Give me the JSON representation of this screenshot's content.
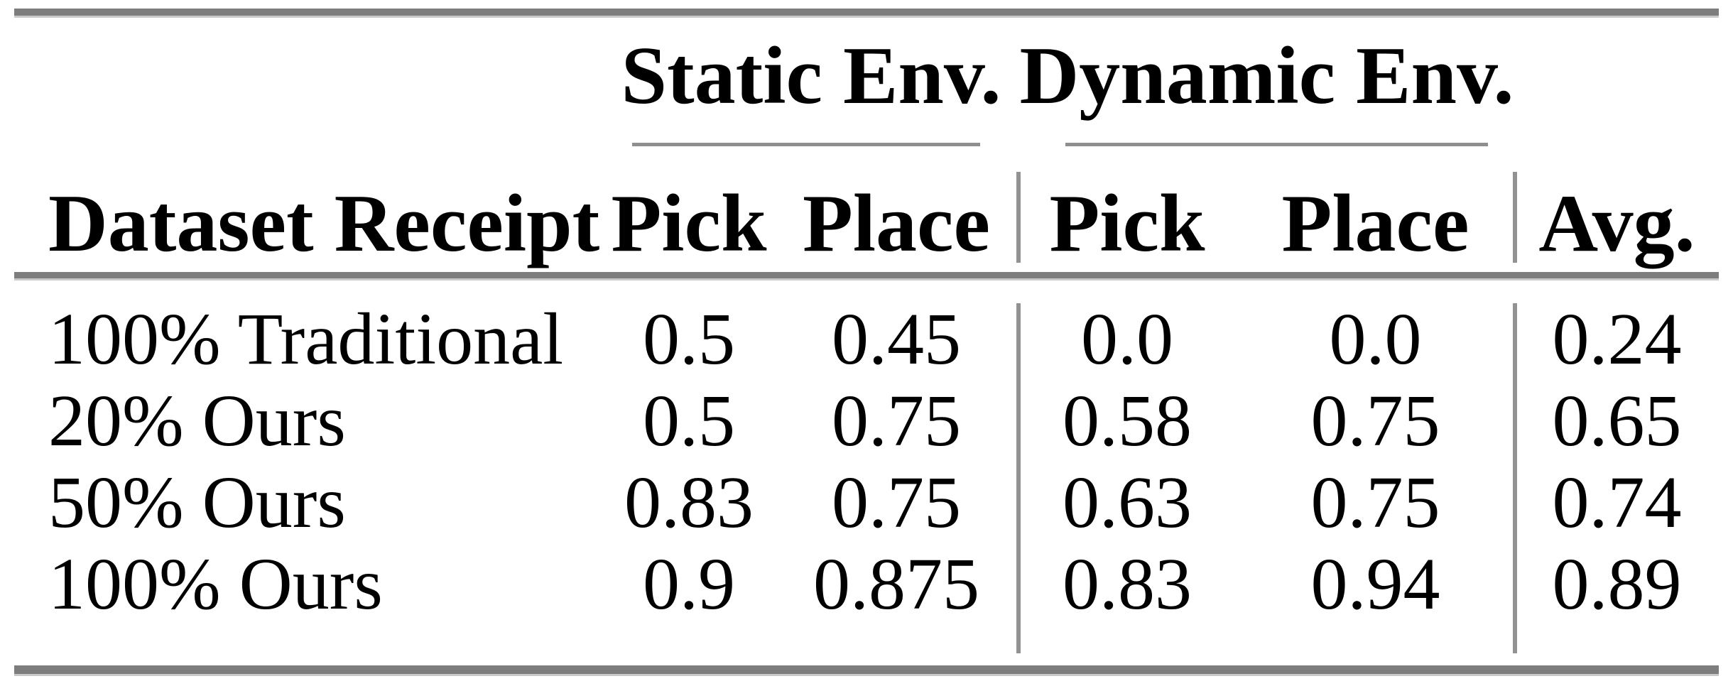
{
  "table": {
    "group_headers": {
      "static": "Static Env.",
      "dynamic": "Dynamic Env."
    },
    "column_headers": {
      "dataset": "Dataset Receipt",
      "static_pick": "Pick",
      "static_place": "Place",
      "dynamic_pick": "Pick",
      "dynamic_place": "Place",
      "avg": "Avg."
    },
    "rows": [
      {
        "dataset": "100% Traditional",
        "static_pick": "0.5",
        "static_place": "0.45",
        "dynamic_pick": "0.0",
        "dynamic_place": "0.0",
        "avg": "0.24"
      },
      {
        "dataset": "20% Ours",
        "static_pick": "0.5",
        "static_place": "0.75",
        "dynamic_pick": "0.58",
        "dynamic_place": "0.75",
        "avg": "0.65"
      },
      {
        "dataset": "50% Ours",
        "static_pick": "0.83",
        "static_place": "0.75",
        "dynamic_pick": "0.63",
        "dynamic_place": "0.75",
        "avg": "0.74"
      },
      {
        "dataset": "100% Ours",
        "static_pick": "0.9",
        "static_place": "0.875",
        "dynamic_pick": "0.83",
        "dynamic_place": "0.94",
        "avg": "0.89"
      }
    ],
    "colors": {
      "rule_dark": "#7d7d7d",
      "rule_light": "#c9c9c9",
      "cmidrule": "#8f8f8f",
      "vertical_rule": "#929292",
      "text": "#000000",
      "background": "#ffffff"
    }
  },
  "chart_data": {
    "type": "table",
    "title": "",
    "column_groups": [
      "",
      "Static Env.",
      "Static Env.",
      "Dynamic Env.",
      "Dynamic Env.",
      ""
    ],
    "columns": [
      "Dataset Receipt",
      "Pick",
      "Place",
      "Pick",
      "Place",
      "Avg."
    ],
    "rows": [
      [
        "100% Traditional",
        0.5,
        0.45,
        0.0,
        0.0,
        0.24
      ],
      [
        "20% Ours",
        0.5,
        0.75,
        0.58,
        0.75,
        0.65
      ],
      [
        "50% Ours",
        0.83,
        0.75,
        0.63,
        0.75,
        0.74
      ],
      [
        "100% Ours",
        0.9,
        0.875,
        0.83,
        0.94,
        0.89
      ]
    ]
  }
}
